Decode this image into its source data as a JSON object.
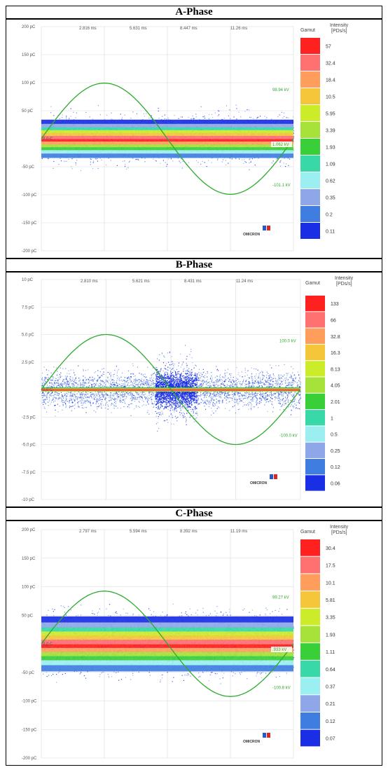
{
  "panels": [
    {
      "title": "A-Phase",
      "ylabels": [
        "200 pC",
        "150 pC",
        "100 pC",
        "50 pC",
        "0.0 C",
        "-50 pC",
        "-100 pC",
        "-150 pC",
        "-200 pC"
      ],
      "xlabels": [
        "2.816 ms",
        "5.631 ms",
        "8.447 ms",
        "11.26 ms"
      ],
      "sine_labels": {
        "peak": "98.94 kV",
        "mid": "1.062 kV",
        "trough": "-101.1 kV"
      },
      "gamut_title": "Gamut",
      "intensity_title": [
        "Intensity",
        "[PDs/s]"
      ],
      "legend": [
        "57",
        "32.4",
        "18.4",
        "10.5",
        "5.95",
        "3.39",
        "1.93",
        "1.09",
        "0.62",
        "0.35",
        "0.2",
        "0.11"
      ],
      "brand": "OMICRON"
    },
    {
      "title": "B-Phase",
      "ylabels": [
        "10 pC",
        "7.5 pC",
        "5.0 pC",
        "2.5 pC",
        "0.0 C",
        "-2.5 pC",
        "-5.0 pC",
        "-7.5 pC",
        "-10 pC"
      ],
      "xlabels": [
        "2.810 ms",
        "5.621 ms",
        "8.431 ms",
        "11.24 ms"
      ],
      "sine_labels": {
        "peak": "100.0 kV",
        "mid": "",
        "trough": "-100.0 kV"
      },
      "gamut_title": "Gamut",
      "intensity_title": [
        "Intensity",
        "[PDs/s]"
      ],
      "legend": [
        "133",
        "66",
        "32.8",
        "16.3",
        "8.13",
        "4.05",
        "2.01",
        "1",
        "0.5",
        "0.25",
        "0.12",
        "0.06"
      ],
      "brand": "OMICRON"
    },
    {
      "title": "C-Phase",
      "ylabels": [
        "200 pC",
        "150 pC",
        "100 pC",
        "50 pC",
        "0.0 C",
        "-50 pC",
        "-100 pC",
        "-150 pC",
        "-200 pC"
      ],
      "xlabels": [
        "2.797 ms",
        "5.594 ms",
        "8.392 ms",
        "11.19 ms"
      ],
      "sine_labels": {
        "peak": "99.27 kV",
        "mid": ".933 kV",
        "trough": "-100.8 kV"
      },
      "gamut_title": "Gamut",
      "intensity_title": [
        "Intensity",
        "[PDs/s]"
      ],
      "legend": [
        "30.4",
        "17.5",
        "10.1",
        "5.81",
        "3.35",
        "1.93",
        "1.11",
        "0.64",
        "0.37",
        "0.21",
        "0.12",
        "0.07"
      ],
      "brand": "OMICRON"
    }
  ],
  "gamut_colors": [
    "#ff2020",
    "#ff7070",
    "#ff9e5c",
    "#f5c63a",
    "#ccec2a",
    "#a6e23a",
    "#38cf38",
    "#38d8a8",
    "#9ceff0",
    "#8fa6e8",
    "#3f7ee0",
    "#1a2ee6"
  ],
  "sine_color": "#2faa2f",
  "chart_data": [
    {
      "type": "heatmap",
      "title": "A-Phase",
      "x": [
        "2.816 ms",
        "5.631 ms",
        "8.447 ms",
        "11.26 ms"
      ],
      "y": [
        "200 pC",
        "150 pC",
        "100 pC",
        "50 pC",
        "0.0 C",
        "-50 pC",
        "-100 pC",
        "-150 pC",
        "-200 pC"
      ],
      "ylim": [
        -200,
        200
      ],
      "legend_values": [
        57,
        32.4,
        18.4,
        10.5,
        5.95,
        3.39,
        1.93,
        1.09,
        0.62,
        0.35,
        0.2,
        0.11
      ],
      "series": [
        {
          "name": "",
          "peak": 98.94,
          "trough": -101.1
        }
      ]
    },
    {
      "type": "heatmap",
      "title": "B-Phase",
      "x": [
        "2.810 ms",
        "5.621 ms",
        "8.431 ms",
        "11.24 ms"
      ],
      "y": [
        "10 pC",
        "7.5 pC",
        "5.0 pC",
        "2.5 pC",
        "0.0 C",
        "-2.5 pC",
        "-5.0 pC",
        "-7.5 pC",
        "-10 pC"
      ],
      "ylim": [
        -10,
        10
      ],
      "legend_values": [
        133,
        66,
        32.8,
        16.3,
        8.13,
        4.05,
        2.01,
        1,
        0.5,
        0.25,
        0.12,
        0.06
      ],
      "series": [
        {
          "name": "",
          "peak": 100.0,
          "trough": -100.0
        }
      ]
    },
    {
      "type": "heatmap",
      "title": "C-Phase",
      "x": [
        "2.797 ms",
        "5.594 ms",
        "8.392 ms",
        "11.19 ms"
      ],
      "y": [
        "200 pC",
        "150 pC",
        "100 pC",
        "50 pC",
        "0.0 C",
        "-50 pC",
        "-100 pC",
        "-150 pC",
        "-200 pC"
      ],
      "ylim": [
        -200,
        200
      ],
      "legend_values": [
        30.4,
        17.5,
        10.1,
        5.81,
        3.35,
        1.93,
        1.11,
        0.64,
        0.37,
        0.21,
        0.12,
        0.07
      ],
      "series": [
        {
          "name": "",
          "peak": 99.27,
          "trough": -100.8
        }
      ]
    }
  ]
}
